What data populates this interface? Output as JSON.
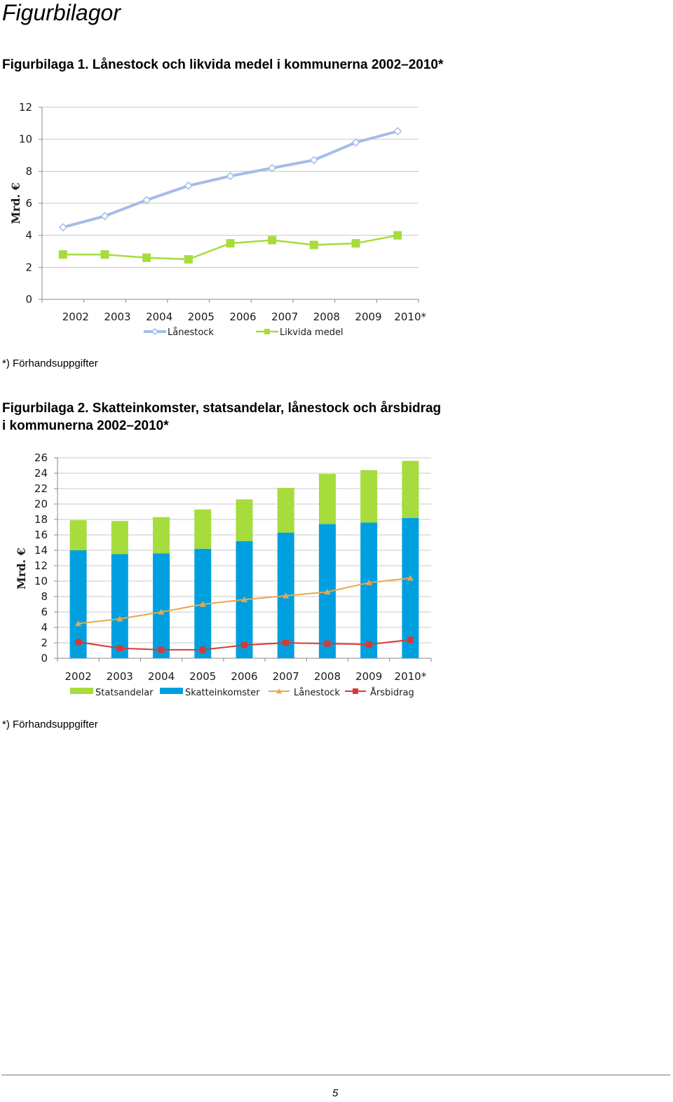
{
  "heading": "Figurbilagor",
  "figure1": {
    "title": "Figurbilaga 1. Lånestock och likvida medel i kommunerna 2002–2010*",
    "note": "*) Förhandsuppgifter"
  },
  "figure2": {
    "title_line1": "Figurbilaga 2. Skatteinkomster, statsandelar, lånestock och årsbidrag",
    "title_line2": "i kommunerna 2002–2010*",
    "note": "*) Förhandsuppgifter"
  },
  "page_number": "5",
  "chart_data": [
    {
      "type": "line",
      "categories": [
        "2002",
        "2003",
        "2004",
        "2005",
        "2006",
        "2007",
        "2008",
        "2009",
        "2010*"
      ],
      "ylabel": "Mrd. €",
      "xlabel": "",
      "ylim": [
        0,
        12
      ],
      "yticks": [
        0,
        2,
        4,
        6,
        8,
        10,
        12
      ],
      "grid": true,
      "legend": "bottom",
      "series": [
        {
          "name": "Lånestock",
          "color": "#a4bde8",
          "marker": "diamond",
          "values": [
            4.5,
            5.2,
            6.2,
            7.1,
            7.7,
            8.2,
            8.7,
            9.8,
            10.5
          ]
        },
        {
          "name": "Likvida medel",
          "color": "#a6dc3c",
          "marker": "square",
          "values": [
            2.8,
            2.8,
            2.6,
            2.5,
            3.5,
            3.7,
            3.4,
            3.5,
            4.0
          ]
        }
      ]
    },
    {
      "type": "bar",
      "stacked": true,
      "categories": [
        "2002",
        "2003",
        "2004",
        "2005",
        "2006",
        "2007",
        "2008",
        "2009",
        "2010*"
      ],
      "ylabel": "Mrd. €",
      "xlabel": "",
      "ylim": [
        0,
        26
      ],
      "yticks": [
        0,
        2,
        4,
        6,
        8,
        10,
        12,
        14,
        16,
        18,
        20,
        22,
        24,
        26
      ],
      "grid": true,
      "legend": "bottom",
      "series": [
        {
          "name": "Statsandelar",
          "kind": "bar",
          "color": "#a6dc3c",
          "values": [
            3.9,
            4.3,
            4.7,
            5.1,
            5.4,
            5.8,
            6.5,
            6.8,
            7.4
          ]
        },
        {
          "name": "Skatteinkomster",
          "kind": "bar",
          "color": "#00a0e0",
          "values": [
            14.0,
            13.5,
            13.6,
            14.2,
            15.2,
            16.3,
            17.4,
            17.6,
            18.2
          ]
        },
        {
          "name": "Lånestock",
          "kind": "line",
          "color": "#e8a74c",
          "marker": "triangle",
          "values": [
            4.5,
            5.1,
            6.0,
            7.0,
            7.6,
            8.1,
            8.6,
            9.8,
            10.4
          ]
        },
        {
          "name": "Årsbidrag",
          "kind": "line",
          "color": "#d63a36",
          "marker": "square",
          "values": [
            2.1,
            1.3,
            1.1,
            1.1,
            1.7,
            2.0,
            1.9,
            1.8,
            2.4
          ]
        }
      ]
    }
  ]
}
